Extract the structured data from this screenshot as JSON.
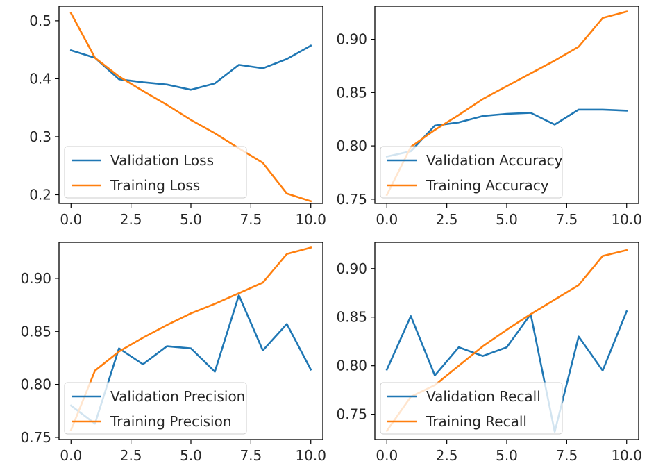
{
  "colors": {
    "validation": "#1f77b4",
    "training": "#ff7f0e",
    "axes": "#000000",
    "legend_border": "#cccccc"
  },
  "chart_data": [
    {
      "type": "line",
      "x": [
        0,
        1,
        2,
        3,
        4,
        5,
        6,
        7,
        8,
        9,
        10
      ],
      "xlim": [
        -0.5,
        10.5
      ],
      "ylim": [
        0.185,
        0.525
      ],
      "xticks": [
        "0.0",
        "2.5",
        "5.0",
        "7.5",
        "10.0"
      ],
      "xtick_values": [
        0,
        2.5,
        5,
        7.5,
        10
      ],
      "yticks": [
        "0.2",
        "0.3",
        "0.4",
        "0.5"
      ],
      "ytick_values": [
        0.2,
        0.3,
        0.4,
        0.5
      ],
      "legend_position": "lower-left",
      "series": [
        {
          "name": "Validation Loss",
          "color": "#1f77b4",
          "values": [
            0.449,
            0.436,
            0.399,
            0.394,
            0.39,
            0.381,
            0.392,
            0.424,
            0.418,
            0.434,
            0.457
          ]
        },
        {
          "name": "Training Loss",
          "color": "#ff7f0e",
          "values": [
            0.513,
            0.436,
            0.404,
            0.379,
            0.355,
            0.329,
            0.306,
            0.28,
            0.255,
            0.202,
            0.189
          ]
        }
      ]
    },
    {
      "type": "line",
      "x": [
        0,
        1,
        2,
        3,
        4,
        5,
        6,
        7,
        8,
        9,
        10
      ],
      "xlim": [
        -0.5,
        10.5
      ],
      "ylim": [
        0.746,
        0.931
      ],
      "xticks": [
        "0.0",
        "2.5",
        "5.0",
        "7.5",
        "10.0"
      ],
      "xtick_values": [
        0,
        2.5,
        5,
        7.5,
        10
      ],
      "yticks": [
        "0.75",
        "0.80",
        "0.85",
        "0.90"
      ],
      "ytick_values": [
        0.75,
        0.8,
        0.85,
        0.9
      ],
      "legend_position": "lower-left",
      "series": [
        {
          "name": "Validation Accuracy",
          "color": "#1f77b4",
          "values": [
            0.79,
            0.795,
            0.819,
            0.822,
            0.828,
            0.83,
            0.831,
            0.82,
            0.834,
            0.834,
            0.833
          ]
        },
        {
          "name": "Training Accuracy",
          "color": "#ff7f0e",
          "values": [
            0.754,
            0.799,
            0.815,
            0.829,
            0.844,
            0.856,
            0.868,
            0.88,
            0.893,
            0.92,
            0.926
          ]
        }
      ]
    },
    {
      "type": "line",
      "x": [
        0,
        1,
        2,
        3,
        4,
        5,
        6,
        7,
        8,
        9,
        10
      ],
      "xlim": [
        -0.5,
        10.5
      ],
      "ylim": [
        0.748,
        0.934
      ],
      "xticks": [
        "0.0",
        "2.5",
        "5.0",
        "7.5",
        "10.0"
      ],
      "xtick_values": [
        0,
        2.5,
        5,
        7.5,
        10
      ],
      "yticks": [
        "0.75",
        "0.80",
        "0.85",
        "0.90"
      ],
      "ytick_values": [
        0.75,
        0.8,
        0.85,
        0.9
      ],
      "legend_position": "lower-left",
      "series": [
        {
          "name": "Validation Precision",
          "color": "#1f77b4",
          "values": [
            0.78,
            0.763,
            0.834,
            0.819,
            0.836,
            0.834,
            0.812,
            0.884,
            0.832,
            0.857,
            0.814
          ]
        },
        {
          "name": "Training Precision",
          "color": "#ff7f0e",
          "values": [
            0.757,
            0.813,
            0.831,
            0.844,
            0.856,
            0.867,
            0.876,
            0.886,
            0.896,
            0.923,
            0.929
          ]
        }
      ]
    },
    {
      "type": "line",
      "x": [
        0,
        1,
        2,
        3,
        4,
        5,
        6,
        7,
        8,
        9,
        10
      ],
      "xlim": [
        -0.5,
        10.5
      ],
      "ylim": [
        0.724,
        0.927
      ],
      "xticks": [
        "0.0",
        "2.5",
        "5.0",
        "7.5",
        "10.0"
      ],
      "xtick_values": [
        0,
        2.5,
        5,
        7.5,
        10
      ],
      "yticks": [
        "0.75",
        "0.80",
        "0.85",
        "0.90"
      ],
      "ytick_values": [
        0.75,
        0.8,
        0.85,
        0.9
      ],
      "legend_position": "lower-left",
      "series": [
        {
          "name": "Validation Recall",
          "color": "#1f77b4",
          "values": [
            0.796,
            0.851,
            0.79,
            0.819,
            0.81,
            0.819,
            0.853,
            0.732,
            0.83,
            0.795,
            0.856
          ]
        },
        {
          "name": "Training Recall",
          "color": "#ff7f0e",
          "values": [
            0.733,
            0.768,
            0.78,
            0.8,
            0.82,
            0.837,
            0.853,
            0.868,
            0.883,
            0.913,
            0.919
          ]
        }
      ]
    }
  ]
}
